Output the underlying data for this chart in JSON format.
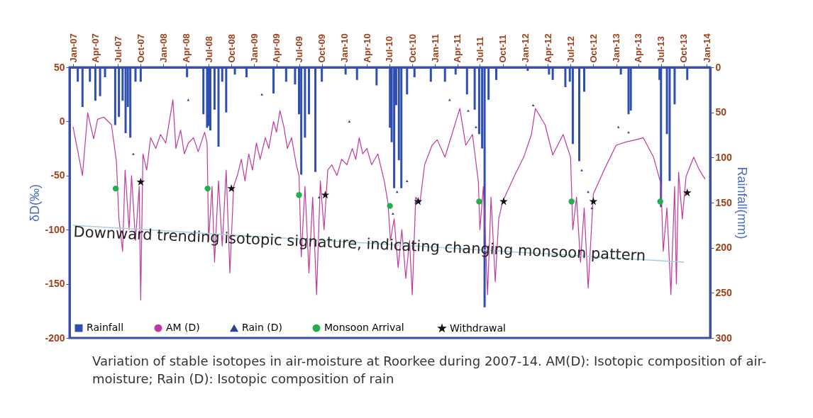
{
  "chart_data": {
    "type": "line",
    "ylabel": "δD(‰)",
    "y2label": "Rainfall(mm)",
    "xlim": [
      "2007-01",
      "2014-01"
    ],
    "xticks": [
      {
        "value": "2007-01",
        "label": "Jan-07"
      },
      {
        "value": "2007-04",
        "label": "Apr-07"
      },
      {
        "value": "2007-07",
        "label": "Jul-07"
      },
      {
        "value": "2007-10",
        "label": "Oct-07"
      },
      {
        "value": "2008-01",
        "label": "Jan-08"
      },
      {
        "value": "2008-04",
        "label": "Apr-08"
      },
      {
        "value": "2008-07",
        "label": "Jul-08"
      },
      {
        "value": "2008-10",
        "label": "Oct-08"
      },
      {
        "value": "2009-01",
        "label": "Jan-09"
      },
      {
        "value": "2009-04",
        "label": "Apr-09"
      },
      {
        "value": "2009-07",
        "label": "Jul-09"
      },
      {
        "value": "2009-10",
        "label": "Oct-09"
      },
      {
        "value": "2010-01",
        "label": "Jan-10"
      },
      {
        "value": "2010-04",
        "label": "Apr-10"
      },
      {
        "value": "2010-07",
        "label": "Jul-10"
      },
      {
        "value": "2010-10",
        "label": "Oct-10"
      },
      {
        "value": "2011-01",
        "label": "Jan-11"
      },
      {
        "value": "2011-04",
        "label": "Apr-11"
      },
      {
        "value": "2011-07",
        "label": "Jul-11"
      },
      {
        "value": "2011-10",
        "label": "Oct-11"
      },
      {
        "value": "2012-01",
        "label": "Jan-12"
      },
      {
        "value": "2012-04",
        "label": "Apr-12"
      },
      {
        "value": "2012-07",
        "label": "Jul-12"
      },
      {
        "value": "2012-10",
        "label": "Oct-12"
      },
      {
        "value": "2013-01",
        "label": "Jan-13"
      },
      {
        "value": "2013-04",
        "label": "Apr-13"
      },
      {
        "value": "2013-07",
        "label": "Jul-13"
      },
      {
        "value": "2013-10",
        "label": "Oct-13"
      },
      {
        "value": "2014-01",
        "label": "Jan-14"
      }
    ],
    "ylim": [
      -200,
      50
    ],
    "yticks": [
      -200,
      -150,
      -100,
      -50,
      0,
      50
    ],
    "y2lim": [
      300,
      0
    ],
    "y2ticks": [
      0,
      50,
      100,
      150,
      200,
      250,
      300
    ],
    "legend": "bottom",
    "grid": false,
    "annotations": [
      "Downward trending isotopic signature, indicating changing monsoon pattern",
      "Variation of stable isotopes in air-moisture at Roorkee during 2007-14. AM(D): Isotopic composition of air-moisture; Rain (D): Isotopic composition of rain"
    ],
    "series": [
      {
        "name": "Rainfall",
        "type": "bar",
        "axis": "y2",
        "color": "#2f4fb0",
        "x": [
          "2007-01-20",
          "2007-02-08",
          "2007-03-10",
          "2007-04-01",
          "2007-04-20",
          "2007-05-10",
          "2007-06-20",
          "2007-07-05",
          "2007-07-20",
          "2007-08-01",
          "2007-08-10",
          "2007-08-20",
          "2007-09-10",
          "2007-10-01",
          "2008-04-05",
          "2008-06-10",
          "2008-06-25",
          "2008-07-01",
          "2008-07-08",
          "2008-07-25",
          "2008-08-10",
          "2008-08-25",
          "2008-09-10",
          "2008-10-15",
          "2008-12-01",
          "2009-03-20",
          "2009-05-10",
          "2009-06-15",
          "2009-07-01",
          "2009-07-10",
          "2009-07-25",
          "2009-08-10",
          "2009-09-05",
          "2009-10-01",
          "2010-01-05",
          "2010-02-20",
          "2010-05-10",
          "2010-07-03",
          "2010-07-10",
          "2010-07-20",
          "2010-07-28",
          "2010-08-08",
          "2010-08-18",
          "2010-09-10",
          "2010-10-10",
          "2010-12-15",
          "2011-02-10",
          "2011-03-25",
          "2011-05-10",
          "2011-06-10",
          "2011-06-28",
          "2011-07-10",
          "2011-07-20",
          "2011-08-05",
          "2011-09-05",
          "2012-01-10",
          "2012-04-05",
          "2012-04-20",
          "2012-06-10",
          "2012-06-28",
          "2012-07-10",
          "2012-08-05",
          "2012-08-25",
          "2013-01-20",
          "2013-02-20",
          "2013-03-01",
          "2013-06-25",
          "2013-07-01",
          "2013-07-25",
          "2013-08-05",
          "2013-08-25",
          "2013-10-15"
        ],
        "values": [
          16,
          44,
          16,
          37,
          32,
          11,
          64,
          55,
          37,
          73,
          44,
          78,
          16,
          16,
          11,
          52,
          67,
          65,
          70,
          47,
          88,
          16,
          50,
          8,
          11,
          29,
          16,
          19,
          52,
          119,
          78,
          52,
          116,
          16,
          8,
          14,
          20,
          67,
          83,
          134,
          42,
          103,
          134,
          30,
          11,
          16,
          16,
          8,
          30,
          47,
          74,
          90,
          266,
          36,
          14,
          4,
          8,
          14,
          22,
          16,
          85,
          104,
          27,
          8,
          52,
          48,
          14,
          155,
          74,
          126,
          41,
          14
        ]
      },
      {
        "name": "AM (D)",
        "color": "#c0399e",
        "x": [
          "2007-01-01",
          "2007-02-08",
          "2007-03-01",
          "2007-03-25",
          "2007-04-10",
          "2007-05-05",
          "2007-06-05",
          "2007-06-25",
          "2007-07-05",
          "2007-07-20",
          "2007-07-30",
          "2007-08-15",
          "2007-08-25",
          "2007-09-10",
          "2007-09-25",
          "2007-10-01",
          "2007-10-10",
          "2007-10-25",
          "2007-11-10",
          "2007-12-01",
          "2007-12-20",
          "2008-01-10",
          "2008-02-08",
          "2008-02-20",
          "2008-03-10",
          "2008-03-25",
          "2008-04-10",
          "2008-05-01",
          "2008-05-20",
          "2008-06-15",
          "2008-06-25",
          "2008-07-01",
          "2008-07-15",
          "2008-07-25",
          "2008-08-10",
          "2008-08-25",
          "2008-09-10",
          "2008-09-25",
          "2008-10-10",
          "2008-10-25",
          "2008-11-10",
          "2008-11-25",
          "2008-12-10",
          "2008-12-25",
          "2009-01-10",
          "2009-01-25",
          "2009-02-15",
          "2009-03-01",
          "2009-03-20",
          "2009-04-01",
          "2009-04-15",
          "2009-05-01",
          "2009-05-15",
          "2009-06-01",
          "2009-06-20",
          "2009-07-01",
          "2009-07-10",
          "2009-07-25",
          "2009-08-10",
          "2009-08-25",
          "2009-09-10",
          "2009-09-25",
          "2009-10-10",
          "2009-10-25",
          "2009-11-10",
          "2009-12-01",
          "2009-12-20",
          "2010-01-10",
          "2010-02-01",
          "2010-02-15",
          "2010-03-01",
          "2010-03-15",
          "2010-04-01",
          "2010-04-20",
          "2010-05-15",
          "2010-06-10",
          "2010-06-25",
          "2010-07-05",
          "2010-07-20",
          "2010-08-05",
          "2010-08-20",
          "2010-09-05",
          "2010-09-20",
          "2010-10-01",
          "2010-10-15",
          "2010-11-01",
          "2010-11-20",
          "2010-12-20",
          "2011-01-10",
          "2011-02-10",
          "2011-03-10",
          "2011-04-11",
          "2011-05-05",
          "2011-06-01",
          "2011-06-25",
          "2011-07-01",
          "2011-07-15",
          "2011-08-01",
          "2011-08-15",
          "2011-09-01",
          "2011-09-15",
          "2011-10-01",
          "2011-11-20",
          "2011-12-25",
          "2012-01-25",
          "2012-02-10",
          "2012-03-20",
          "2012-04-20",
          "2012-06-01",
          "2012-07-01",
          "2012-07-10",
          "2012-07-25",
          "2012-08-10",
          "2012-08-25",
          "2012-09-10",
          "2012-10-01",
          "2012-11-15",
          "2013-01-01",
          "2013-02-10",
          "2013-03-20",
          "2013-04-20",
          "2013-06-01",
          "2013-07-01",
          "2013-07-10",
          "2013-07-25",
          "2013-08-10",
          "2013-08-25",
          "2013-09-01",
          "2013-09-10",
          "2013-09-25",
          "2013-10-10",
          "2013-11-10",
          "2013-12-01",
          "2013-12-25"
        ],
        "values": [
          -5,
          -50,
          8,
          -16,
          2,
          4,
          -3,
          -37,
          -90,
          -120,
          -45,
          -100,
          -50,
          -110,
          -60,
          -165,
          -30,
          -45,
          -15,
          -25,
          -12,
          -20,
          20,
          -25,
          -8,
          -30,
          -20,
          -15,
          -28,
          -10,
          -20,
          -110,
          -60,
          -130,
          -55,
          -115,
          -45,
          -140,
          -60,
          -50,
          -35,
          -55,
          -30,
          -45,
          -20,
          -35,
          -15,
          -25,
          0,
          -10,
          10,
          -5,
          -25,
          -15,
          -40,
          -50,
          -125,
          -60,
          -140,
          -70,
          -160,
          -55,
          -100,
          -45,
          -40,
          -50,
          -35,
          -40,
          -25,
          -35,
          -15,
          -30,
          -25,
          -40,
          -30,
          -55,
          -75,
          -110,
          -90,
          -135,
          -100,
          -145,
          -110,
          -160,
          -70,
          -75,
          -40,
          -22,
          -17,
          -33,
          -12,
          12,
          -22,
          -12,
          -56,
          -100,
          -60,
          -160,
          -70,
          -148,
          -90,
          -74,
          -49,
          -33,
          -12,
          12,
          -3,
          -31,
          -12,
          -33,
          -100,
          -70,
          -130,
          -80,
          -154,
          -67,
          -44,
          -22,
          -19,
          -17,
          -15,
          -33,
          -58,
          -120,
          -80,
          -160,
          -60,
          -150,
          -47,
          -90,
          -51,
          -33,
          -44,
          -53
        ]
      },
      {
        "name": "Rain (D)",
        "type": "scatter",
        "marker": "triangle",
        "color": "#2a3f8f",
        "x": [
          "2007-09-01",
          "2008-04-10",
          "2009-02-01",
          "2009-09-20",
          "2010-01-20",
          "2010-07-15",
          "2010-08-01",
          "2010-09-10",
          "2010-10-15",
          "2011-03-01",
          "2011-05-15",
          "2011-06-15",
          "2012-02-01",
          "2012-08-15",
          "2012-09-10",
          "2012-09-25",
          "2013-01-10",
          "2013-02-20"
        ],
        "values": [
          -30,
          20,
          25,
          -70,
          0,
          -85,
          -65,
          -55,
          -75,
          20,
          10,
          -5,
          15,
          -45,
          -65,
          -80,
          -5,
          -10
        ]
      },
      {
        "name": "Monsoon  Arrival",
        "type": "scatter",
        "marker": "circle",
        "color": "#22b04b",
        "x": [
          "2007-06-22",
          "2008-06-27",
          "2009-07-01",
          "2010-07-03",
          "2011-06-28",
          "2012-07-05",
          "2013-06-28"
        ],
        "values": [
          -62,
          -62,
          -68,
          -78,
          -74,
          -74,
          -74
        ]
      },
      {
        "name": "Withdrawal",
        "type": "scatter",
        "marker": "star",
        "color": "#111111",
        "x": [
          "2007-10-01",
          "2008-10-01",
          "2009-10-15",
          "2010-10-25",
          "2011-10-05",
          "2012-10-01",
          "2013-10-15"
        ],
        "values": [
          -56,
          -62,
          -68,
          -74,
          -74,
          -74,
          -66
        ]
      },
      {
        "color": "#a8cfe0",
        "x": [
          "2007-01-01",
          "2013-10-01"
        ],
        "values": [
          -96,
          -130
        ]
      }
    ]
  }
}
